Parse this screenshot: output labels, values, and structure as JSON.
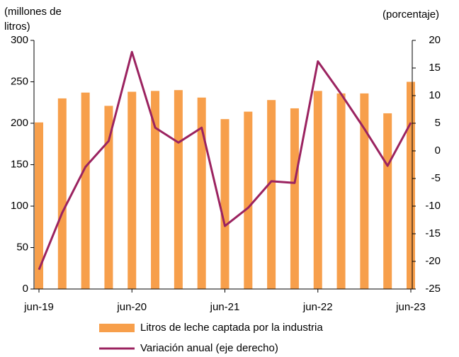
{
  "chart_data": {
    "type": "bar_line",
    "ylabel": "(millones de litros)",
    "y2label": "(porcentaje)",
    "categories": [
      "jun-19",
      null,
      null,
      null,
      "jun-20",
      null,
      null,
      null,
      "jun-21",
      null,
      null,
      null,
      "jun-22",
      null,
      null,
      null,
      "jun-23"
    ],
    "series": [
      {
        "name": "Litros de leche captada por la industria",
        "type": "bar",
        "color": "#f79f4b",
        "values": [
          201,
          230,
          237,
          221,
          238,
          239,
          240,
          231,
          205,
          214,
          228,
          218,
          239,
          236,
          236,
          212,
          250
        ]
      },
      {
        "name": "Variación anual (eje derecho)",
        "type": "line",
        "axis": "y2",
        "color": "#9b2360",
        "values": [
          -21.5,
          -11.2,
          -2.9,
          1.8,
          17.9,
          4.2,
          1.5,
          4.2,
          -13.6,
          -10.3,
          -5.5,
          -5.8,
          16.2,
          10.3,
          4.0,
          -2.7,
          5.1
        ]
      }
    ],
    "ylim": [
      0,
      300
    ],
    "yticks": [
      0,
      50,
      100,
      150,
      200,
      250,
      300
    ],
    "y2lim": [
      -25,
      20
    ],
    "y2ticks": [
      -25,
      -20,
      -15,
      -10,
      -5,
      0,
      5,
      10,
      15,
      20
    ],
    "legend": "bottom"
  }
}
